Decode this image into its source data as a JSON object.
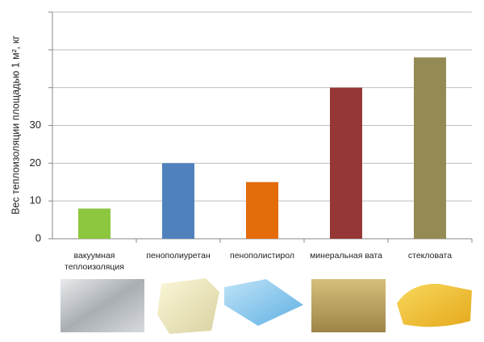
{
  "chart_data": {
    "type": "bar",
    "y_label": "Вес теплоизоляции площадью 1 м², кг",
    "categories": [
      "вакуумная теплоизоляция",
      "пенополиуретан",
      "пенополистирол",
      "минеральная вата",
      "стекловата"
    ],
    "values": [
      8,
      20,
      15,
      40,
      48
    ],
    "colors": [
      "#8dc63f",
      "#4f81bd",
      "#e46c0a",
      "#953735",
      "#948a54"
    ],
    "ylim": [
      0,
      60
    ],
    "yticks": [
      0,
      10,
      20,
      30,
      {
        "value": 40,
        "label": null
      },
      {
        "value": 50,
        "label": null
      },
      {
        "value": 60,
        "label": null
      }
    ],
    "grid": true
  }
}
